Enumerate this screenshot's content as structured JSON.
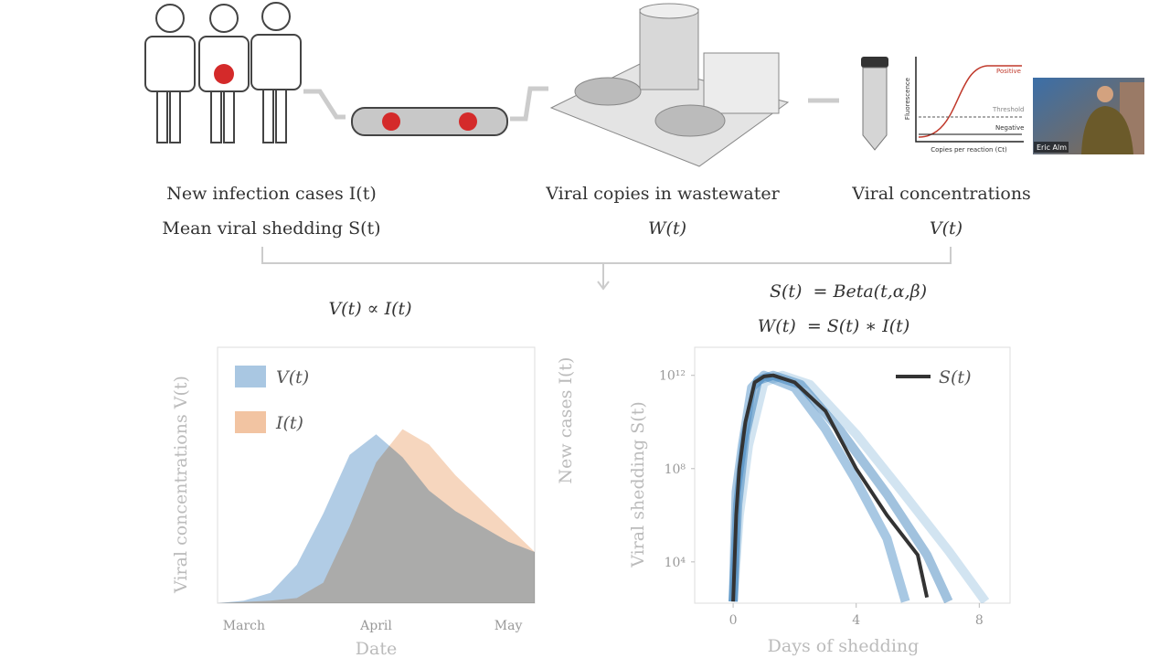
{
  "diagram": {
    "steps": [
      {
        "label": "New infection cases I(t)",
        "sublabel": "Mean viral shedding S(t)"
      },
      {
        "label": "Viral copies in wastewater",
        "sublabel": "W(t)"
      },
      {
        "label": "Viral concentrations",
        "sublabel": "V(t)"
      }
    ],
    "qpcr_plot": {
      "y_label": "Fluorescence",
      "x_label": "Copies per reaction (Ct)",
      "positive": "Positive",
      "threshold": "Threshold",
      "negative": "Negative"
    }
  },
  "video": {
    "participant": "Eric Alm"
  },
  "formulas": {
    "left": "V(t) ∝ I(t)",
    "right": [
      "S(t)  = Beta(t,α,β)",
      "W(t)  = S(t) ∗ I(t)"
    ]
  },
  "chart_data": [
    {
      "type": "area",
      "categories": [
        null,
        "March",
        null,
        null,
        null,
        null,
        "April",
        null,
        null,
        null,
        null,
        "May",
        null
      ],
      "series": [
        {
          "name": "V(t)",
          "color": "#a9c7e2",
          "values": [
            0,
            1,
            4,
            15,
            35,
            58,
            66,
            57,
            44,
            36,
            30,
            24,
            20
          ]
        },
        {
          "name": "I(t)",
          "color": "#f2c4a2",
          "values": [
            0,
            0.5,
            1,
            2,
            8,
            30,
            55,
            68,
            62,
            50,
            40,
            30,
            20
          ]
        }
      ],
      "ylim": [
        0,
        100
      ],
      "x_label": "Date",
      "y_label": "Viral concentrations V(t)",
      "y2_label": "New cases I(t)",
      "legend": "upper left"
    },
    {
      "type": "line",
      "x_label": "Days of shedding",
      "y_label": "Viral shedding S(t)",
      "xlim": [
        -1.25,
        9
      ],
      "xticks": [
        0,
        4,
        8
      ],
      "ylim": [
        170,
        16000000000000
      ],
      "log_y": true,
      "yticks": [
        {
          "value": 10000,
          "label": "10⁴"
        },
        {
          "value": 100000000,
          "label": "10⁸"
        },
        {
          "value": 1000000000000,
          "label": "10¹²"
        }
      ],
      "legend": "upper right",
      "series": [
        {
          "color": "#9cc3e0",
          "x": [
            0,
            0.2,
            0.5,
            1.0,
            1.6,
            2.5,
            4,
            5.5,
            7,
            8.2
          ],
          "values": [
            200,
            1000000,
            1000000000,
            500000000000,
            1000000000000,
            400000000000,
            3000000000,
            10000000,
            30000,
            200
          ]
        },
        {
          "color": "#3f86c0",
          "x": [
            0,
            0.1,
            0.3,
            0.6,
            1.0,
            2,
            3,
            4,
            5,
            5.6
          ],
          "values": [
            200,
            10000000,
            1000000000,
            300000000000,
            1000000000000,
            300000000000,
            5000000000,
            30000000,
            100000,
            200
          ]
        },
        {
          "color": "#2f78b5",
          "x": [
            0,
            0.15,
            0.4,
            0.8,
            1.3,
            2.2,
            3.5,
            5,
            6.3,
            7.0
          ],
          "values": [
            200,
            3000000,
            3000000000,
            600000000000,
            1000000000000,
            400000000000,
            4000000000,
            8000000,
            20000,
            200
          ]
        },
        {
          "name": "S(t)",
          "color": "#333333",
          "x": [
            0,
            0.1,
            0.2,
            0.4,
            0.7,
            1.0,
            1.3,
            2,
            3,
            4,
            5,
            6,
            6.3
          ],
          "values": [
            200,
            1000000,
            100000000,
            10000000000,
            500000000000,
            900000000000,
            1000000000000,
            500000000000,
            30000000000,
            100000000,
            1000000,
            20000,
            300
          ]
        }
      ]
    }
  ]
}
